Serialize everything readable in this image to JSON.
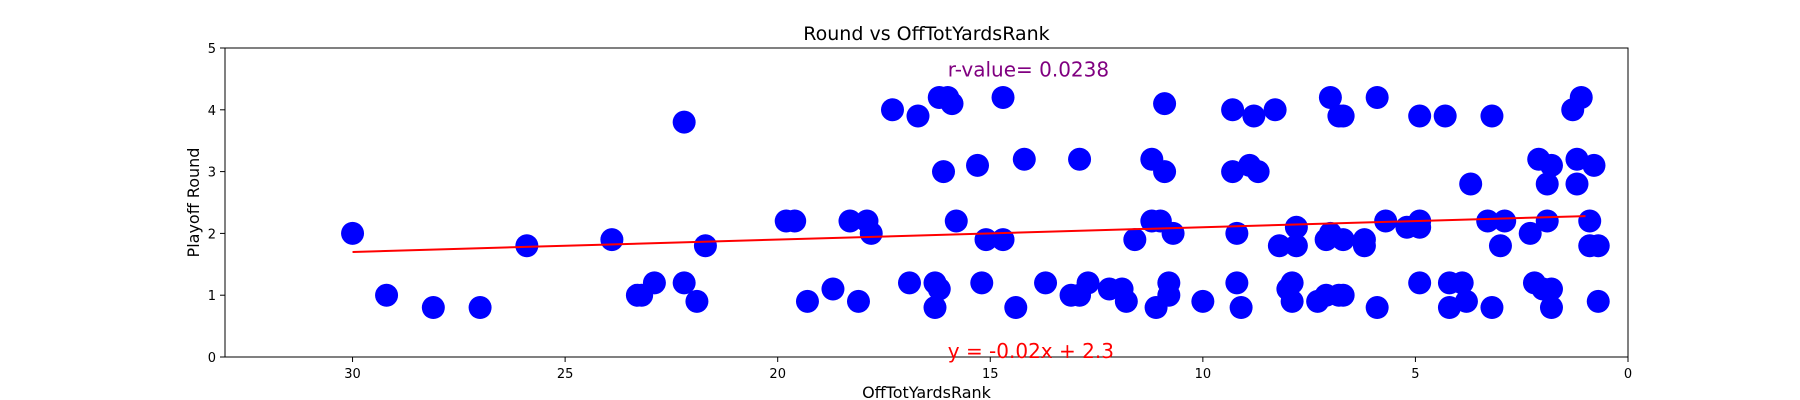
{
  "chart_data": {
    "type": "scatter",
    "title": "Round vs OffTotYardsRank",
    "xlabel": "OffTotYardsRank",
    "ylabel": "Playoff Round",
    "xlim": [
      33,
      0
    ],
    "ylim": [
      0,
      5
    ],
    "x_inverted": true,
    "x_ticks": [
      30,
      25,
      20,
      15,
      10,
      5,
      0
    ],
    "y_ticks": [
      0,
      1,
      2,
      3,
      4,
      5
    ],
    "grid": false,
    "colors": {
      "points": "#0000ff",
      "regression": "#ff0000",
      "r_value": "#800080",
      "axes": "#000000"
    },
    "regression": {
      "slope": -0.02,
      "intercept": 2.3,
      "x_range": [
        30,
        1
      ]
    },
    "annotations": {
      "r_value": "r-value= 0.0238",
      "equation": "y = -0.02x + 2.3"
    },
    "points": [
      {
        "x": 30,
        "y": 2
      },
      {
        "x": 29.2,
        "y": 1
      },
      {
        "x": 28.1,
        "y": 0.8
      },
      {
        "x": 27,
        "y": 0.8
      },
      {
        "x": 25.9,
        "y": 1.8
      },
      {
        "x": 23.9,
        "y": 1.9
      },
      {
        "x": 23.3,
        "y": 1
      },
      {
        "x": 23.2,
        "y": 1
      },
      {
        "x": 22.9,
        "y": 1.2
      },
      {
        "x": 22.2,
        "y": 3.8
      },
      {
        "x": 22.2,
        "y": 1.2
      },
      {
        "x": 21.9,
        "y": 0.9
      },
      {
        "x": 21.7,
        "y": 1.8
      },
      {
        "x": 19.8,
        "y": 2.2
      },
      {
        "x": 19.6,
        "y": 2.2
      },
      {
        "x": 19.3,
        "y": 0.9
      },
      {
        "x": 18.7,
        "y": 1.1
      },
      {
        "x": 18.3,
        "y": 2.2
      },
      {
        "x": 18.1,
        "y": 0.9
      },
      {
        "x": 17.9,
        "y": 2.2
      },
      {
        "x": 17.8,
        "y": 2
      },
      {
        "x": 17.3,
        "y": 4
      },
      {
        "x": 16.9,
        "y": 1.2
      },
      {
        "x": 16.7,
        "y": 3.9
      },
      {
        "x": 16.3,
        "y": 1.2
      },
      {
        "x": 16.3,
        "y": 0.8
      },
      {
        "x": 16.2,
        "y": 4.2
      },
      {
        "x": 16.2,
        "y": 1.1
      },
      {
        "x": 16.1,
        "y": 3
      },
      {
        "x": 16,
        "y": 4.2
      },
      {
        "x": 15.9,
        "y": 4.1
      },
      {
        "x": 15.8,
        "y": 2.2
      },
      {
        "x": 15.3,
        "y": 3.1
      },
      {
        "x": 15.2,
        "y": 1.2
      },
      {
        "x": 15.1,
        "y": 1.9
      },
      {
        "x": 14.7,
        "y": 4.2
      },
      {
        "x": 14.7,
        "y": 1.9
      },
      {
        "x": 14.4,
        "y": 0.8
      },
      {
        "x": 14.2,
        "y": 3.2
      },
      {
        "x": 13.7,
        "y": 1.2
      },
      {
        "x": 13.1,
        "y": 1
      },
      {
        "x": 12.9,
        "y": 3.2
      },
      {
        "x": 12.9,
        "y": 1
      },
      {
        "x": 12.7,
        "y": 1.2
      },
      {
        "x": 12.2,
        "y": 1.1
      },
      {
        "x": 11.9,
        "y": 1.1
      },
      {
        "x": 11.8,
        "y": 0.9
      },
      {
        "x": 11.6,
        "y": 1.9
      },
      {
        "x": 11.2,
        "y": 3.2
      },
      {
        "x": 11.2,
        "y": 2.2
      },
      {
        "x": 11.1,
        "y": 0.8
      },
      {
        "x": 11,
        "y": 2.2
      },
      {
        "x": 10.9,
        "y": 4.1
      },
      {
        "x": 10.9,
        "y": 3
      },
      {
        "x": 10.8,
        "y": 1.2
      },
      {
        "x": 10.8,
        "y": 1
      },
      {
        "x": 10.7,
        "y": 2
      },
      {
        "x": 10,
        "y": 0.9
      },
      {
        "x": 9.3,
        "y": 4
      },
      {
        "x": 9.3,
        "y": 3
      },
      {
        "x": 9.2,
        "y": 2
      },
      {
        "x": 9.2,
        "y": 1.2
      },
      {
        "x": 9.1,
        "y": 0.8
      },
      {
        "x": 8.9,
        "y": 3.1
      },
      {
        "x": 8.8,
        "y": 3.9
      },
      {
        "x": 8.7,
        "y": 3
      },
      {
        "x": 8.3,
        "y": 4
      },
      {
        "x": 8.2,
        "y": 1.8
      },
      {
        "x": 8,
        "y": 1.1
      },
      {
        "x": 7.9,
        "y": 1.2
      },
      {
        "x": 7.9,
        "y": 0.9
      },
      {
        "x": 7.8,
        "y": 2.1
      },
      {
        "x": 7.8,
        "y": 1.8
      },
      {
        "x": 7.3,
        "y": 0.9
      },
      {
        "x": 7.1,
        "y": 1.9
      },
      {
        "x": 7.1,
        "y": 1
      },
      {
        "x": 7,
        "y": 4.2
      },
      {
        "x": 7,
        "y": 2
      },
      {
        "x": 6.8,
        "y": 3.9
      },
      {
        "x": 6.8,
        "y": 1
      },
      {
        "x": 6.7,
        "y": 3.9
      },
      {
        "x": 6.7,
        "y": 1.9
      },
      {
        "x": 6.7,
        "y": 1
      },
      {
        "x": 6.2,
        "y": 1.9
      },
      {
        "x": 6.2,
        "y": 1.8
      },
      {
        "x": 5.9,
        "y": 4.2
      },
      {
        "x": 5.9,
        "y": 0.8
      },
      {
        "x": 5.7,
        "y": 2.2
      },
      {
        "x": 5.2,
        "y": 2.1
      },
      {
        "x": 4.9,
        "y": 3.9
      },
      {
        "x": 4.9,
        "y": 2.2
      },
      {
        "x": 4.9,
        "y": 2.1
      },
      {
        "x": 4.9,
        "y": 1.2
      },
      {
        "x": 4.3,
        "y": 3.9
      },
      {
        "x": 4.2,
        "y": 1.2
      },
      {
        "x": 4.2,
        "y": 0.8
      },
      {
        "x": 3.9,
        "y": 1.2
      },
      {
        "x": 3.8,
        "y": 0.9
      },
      {
        "x": 3.7,
        "y": 2.8
      },
      {
        "x": 3.3,
        "y": 2.2
      },
      {
        "x": 3.2,
        "y": 3.9
      },
      {
        "x": 3.2,
        "y": 0.8
      },
      {
        "x": 3,
        "y": 1.8
      },
      {
        "x": 2.9,
        "y": 2.2
      },
      {
        "x": 2.3,
        "y": 2
      },
      {
        "x": 2.2,
        "y": 1.2
      },
      {
        "x": 2.1,
        "y": 3.2
      },
      {
        "x": 2,
        "y": 1.1
      },
      {
        "x": 1.9,
        "y": 2.8
      },
      {
        "x": 1.9,
        "y": 2.2
      },
      {
        "x": 1.8,
        "y": 3.1
      },
      {
        "x": 1.8,
        "y": 1.1
      },
      {
        "x": 1.8,
        "y": 0.8
      },
      {
        "x": 1.3,
        "y": 4
      },
      {
        "x": 1.2,
        "y": 3.2
      },
      {
        "x": 1.2,
        "y": 2.8
      },
      {
        "x": 1.1,
        "y": 4.2
      },
      {
        "x": 0.9,
        "y": 1.8
      },
      {
        "x": 0.9,
        "y": 2.2
      },
      {
        "x": 0.8,
        "y": 3.1
      },
      {
        "x": 0.7,
        "y": 1.8
      },
      {
        "x": 0.7,
        "y": 0.9
      }
    ]
  }
}
